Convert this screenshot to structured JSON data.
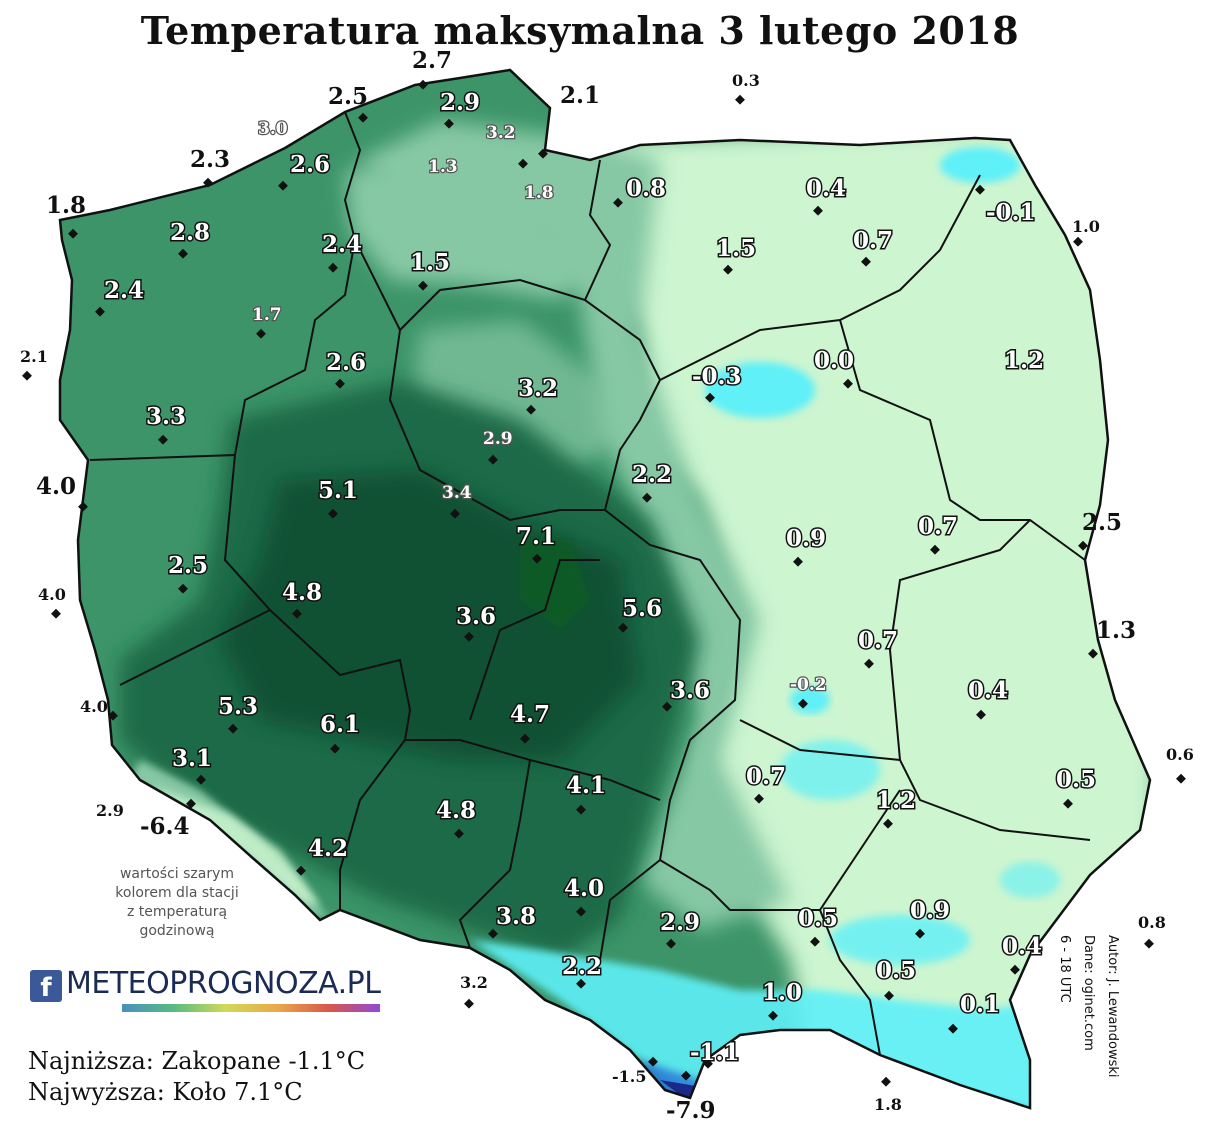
{
  "title": "Temperatura maksymalna 3 lutego 2018",
  "note_lines": [
    "wartości szarym",
    "kolorem dla stacji",
    "z temperaturą",
    "godzinową"
  ],
  "logo": {
    "fb_icon": "facebook-icon",
    "fb_letter": "f",
    "text": "METEOPROGNOZA.PL"
  },
  "stats": {
    "min": "Najniższa: Zakopane -1.1°C",
    "max": "Najwyższa: Koło  7.1°C"
  },
  "credits": [
    "Autor: J. Lewandowski",
    "Dane: oginet.com",
    "6 - 18 UTC"
  ],
  "colors": {
    "zone_warmest": "#0b4a2e",
    "zone_warm": "#1e6b47",
    "zone_mild": "#3c9468",
    "zone_cool": "#86c8a4",
    "zone_cold": "#ccf5d0",
    "zone_freezing": "#5ef0f8",
    "zone_mountain_deep": "#1a2a8a",
    "water": "#ffffff",
    "border": "#111111"
  },
  "stations": [
    {
      "t": "2.7"
    },
    {
      "t": "2.5"
    },
    {
      "t": "2.9"
    },
    {
      "t": "2.1"
    },
    {
      "t": "0.3"
    },
    {
      "t": "3.0"
    },
    {
      "t": "3.2"
    },
    {
      "t": "1.3"
    },
    {
      "t": "2.3"
    },
    {
      "t": "2.6"
    },
    {
      "t": "1.8"
    },
    {
      "t": "0.8"
    },
    {
      "t": "0.4"
    },
    {
      "t": "-0.1"
    },
    {
      "t": "1.8"
    },
    {
      "t": "2.8"
    },
    {
      "t": "2.4"
    },
    {
      "t": "1.5"
    },
    {
      "t": "1.5"
    },
    {
      "t": "0.7"
    },
    {
      "t": "1.0"
    },
    {
      "t": "2.4"
    },
    {
      "t": "1.7"
    },
    {
      "t": "2.1"
    },
    {
      "t": "2.6"
    },
    {
      "t": "-0.3"
    },
    {
      "t": "0.0"
    },
    {
      "t": "1.2"
    },
    {
      "t": "3.3"
    },
    {
      "t": "3.2"
    },
    {
      "t": "2.9"
    },
    {
      "t": "4.0"
    },
    {
      "t": "5.1"
    },
    {
      "t": "3.4"
    },
    {
      "t": "2.2"
    },
    {
      "t": "7.1"
    },
    {
      "t": "0.9"
    },
    {
      "t": "0.7"
    },
    {
      "t": "2.5"
    },
    {
      "t": "2.5"
    },
    {
      "t": "4.0"
    },
    {
      "t": "4.8"
    },
    {
      "t": "3.6"
    },
    {
      "t": "5.6"
    },
    {
      "t": "0.7"
    },
    {
      "t": "1.3"
    },
    {
      "t": "4.0"
    },
    {
      "t": "-0.2"
    },
    {
      "t": "5.3"
    },
    {
      "t": "6.1"
    },
    {
      "t": "4.7"
    },
    {
      "t": "3.6"
    },
    {
      "t": "0.4"
    },
    {
      "t": "3.1"
    },
    {
      "t": "0.7"
    },
    {
      "t": "0.6"
    },
    {
      "t": "4.1"
    },
    {
      "t": "0.5"
    },
    {
      "t": "2.9"
    },
    {
      "t": "-6.4"
    },
    {
      "t": "4.8"
    },
    {
      "t": "1.2"
    },
    {
      "t": "4.2"
    },
    {
      "t": "4.0"
    },
    {
      "t": "3.8"
    },
    {
      "t": "0.9"
    },
    {
      "t": "0.5"
    },
    {
      "t": "2.9"
    },
    {
      "t": "0.8"
    },
    {
      "t": "0.4"
    },
    {
      "t": "2.2"
    },
    {
      "t": "3.2"
    },
    {
      "t": "1.0"
    },
    {
      "t": "0.5"
    },
    {
      "t": "0.1"
    },
    {
      "t": "-1.1"
    },
    {
      "t": "-1.5"
    },
    {
      "t": "1.8"
    },
    {
      "t": "-7.9"
    }
  ]
}
